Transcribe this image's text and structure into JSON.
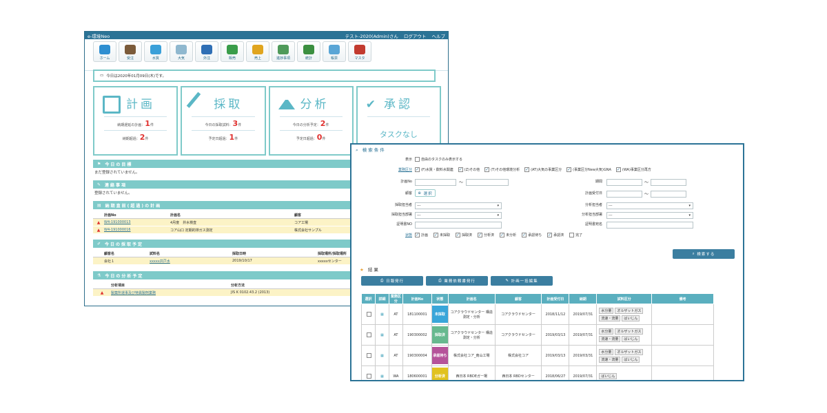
{
  "main": {
    "app_title": "e-環境Neo",
    "user": "テスト-2020(Admin)さん",
    "logout": "ログアウト",
    "help": "ヘルプ",
    "toolbar": [
      {
        "label": "ホーム",
        "color": "#2e8fd1"
      },
      {
        "label": "受注",
        "color": "#7b5b3a"
      },
      {
        "label": "水質",
        "color": "#3aa0d9"
      },
      {
        "label": "大気",
        "color": "#8fb8cf"
      },
      {
        "label": "外注",
        "color": "#2f6fb5"
      },
      {
        "label": "販売",
        "color": "#3a9d4a"
      },
      {
        "label": "売上",
        "color": "#e0a51f"
      },
      {
        "label": "進捗事項",
        "color": "#4f9a5a"
      },
      {
        "label": "統計",
        "color": "#3b8f40"
      },
      {
        "label": "帳票",
        "color": "#5aa6d6"
      },
      {
        "label": "マスタ",
        "color": "#c23b2f"
      }
    ],
    "date_text": "今日は2020年01月09日(木)です。",
    "cards": {
      "plan": {
        "title": "計画",
        "s1_label": "納期遅延の計画：",
        "s1_val": "1",
        "s1_unit": "件",
        "s2_label": "納期超過：",
        "s2_val": "2",
        "s2_unit": "件"
      },
      "sampling": {
        "title": "採取",
        "s1_label": "今日の採取試料：",
        "s1_val": "3",
        "s1_unit": "件",
        "s2_label": "予定日超過：",
        "s2_val": "1",
        "s2_unit": "件"
      },
      "analysis": {
        "title": "分析",
        "s1_label": "今日の分析予定：",
        "s1_val": "2",
        "s1_unit": "件",
        "s2_label": "予定日超過：",
        "s2_val": "0",
        "s2_unit": "件"
      },
      "approval": {
        "title": "承認",
        "none": "タスクなし"
      }
    },
    "goals": {
      "title": "今日の目標",
      "text": "まだ登録されていません。"
    },
    "notices": {
      "title": "連絡事項",
      "text": "登録されていません。"
    },
    "due_plans": {
      "title": "納期直前(超過)の計画",
      "cols": [
        "計画No",
        "計画名",
        "顧客"
      ],
      "rows": [
        {
          "no": "W4-191000013",
          "name": "4月度　井水検査",
          "client": "コア工場"
        },
        {
          "no": "W4-191000016",
          "name": "コア山口 定期的排ガス測定",
          "client": "株式会社サンプル"
        }
      ]
    },
    "today_sampling": {
      "title": "今日の採取予定",
      "cols": [
        "顧客名",
        "試料名",
        "採取日時",
        "採取場所/採取場所"
      ],
      "rows": [
        {
          "client": "会社１",
          "sample": "xxxxx井戸水",
          "date": "2019/10/17",
          "place": "xxxxxセンター"
        }
      ]
    },
    "today_analysis": {
      "title": "今日の分析予定",
      "cols": [
        "分析項目",
        "分析方法"
      ],
      "rows": [
        {
          "item": "製薬所運事及び特異製剤業務",
          "method": "JIS K 0102.43.2 (2013)"
        }
      ]
    }
  },
  "search": {
    "title": "検索条件",
    "display_label": "表示",
    "display_opt": "自由のタスクのみ表示する",
    "category_label": "業務区分",
    "categories": [
      "(F)水質・飲料水関連",
      "(Z)その他",
      "(T)その他環境分析",
      "(AT)大気の事業区分",
      "(事業区分New大気)GNA",
      "(WA)事業区分再方"
    ],
    "plan_no_label": "計画No",
    "name_label": "顧客",
    "period_label": "期間",
    "client_label": "顧客",
    "select_btn": "選択",
    "plan_date_label": "計画受付日",
    "sampler_label": "採取担当者",
    "sample_dept_label": "採取担当部署",
    "analyst_label": "分析担当者",
    "analysis_dept_label": "分析担当部署",
    "cert_no_label": "証明書NO",
    "cert_name_label": "証明書宛名",
    "select_placeholder": "---",
    "status_label": "状態",
    "statuses": [
      "計画",
      "未採取",
      "採取済",
      "分析済",
      "未分析",
      "承認待ち",
      "承認済"
    ],
    "status_done": "完了",
    "search_btn": "検索する",
    "results_label": "結果",
    "btn_daily": "日報発行",
    "btn_request": "業務依頼書発行",
    "btn_bulk": "計画一括編集",
    "cols": [
      "選択",
      "詳細",
      "業務区分",
      "計画No",
      "状態",
      "計画名",
      "顧客",
      "計画受付日",
      "納期",
      "試料区分",
      "備考"
    ],
    "rows": [
      {
        "cat": "AT",
        "no": "181100001",
        "status": "未採取",
        "status_color": "#3aa6d9",
        "name": "コアクラウドセンター 構造測定・分析",
        "client": "コアクラウドセンター",
        "date": "2018/11/12",
        "due": "2019/07/31",
        "tags": [
          "水分量",
          "オルザットガス",
          "流速・流量",
          "ばいじん"
        ]
      },
      {
        "cat": "AT",
        "no": "190300002",
        "status": "採取済",
        "status_color": "#67b98f",
        "name": "コアクラウドセンター 構造測定・分析",
        "client": "コアクラウドセンター",
        "date": "2019/03/13",
        "due": "2019/07/31",
        "tags": [
          "水分量",
          "オルザットガス",
          "流速・流量",
          "ばいじん"
        ]
      },
      {
        "cat": "AT",
        "no": "190300004",
        "status": "承認待ち",
        "status_color": "#b5539a",
        "name": "株式会社コア_南山工場",
        "client": "株式会社コア",
        "date": "2019/03/13",
        "due": "2019/03/31",
        "tags": [
          "水分量",
          "オルザットガス",
          "流速・流量",
          "ばいじん"
        ]
      },
      {
        "cat": "WA",
        "no": "180600001",
        "status": "分析済",
        "status_color": "#e1c21f",
        "name": "西日本 RBDEガー場",
        "client": "西日本 RBDセンター",
        "date": "2018/06/27",
        "due": "2019/07/31",
        "tags": [
          "ばいじん"
        ]
      }
    ]
  }
}
